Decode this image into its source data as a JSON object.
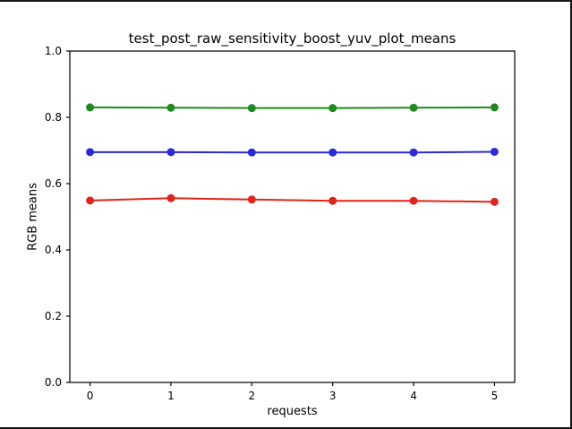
{
  "chart_data": {
    "type": "line",
    "title": "test_post_raw_sensitivity_boost_yuv_plot_means",
    "xlabel": "requests",
    "ylabel": "RGB means",
    "x": [
      0,
      1,
      2,
      3,
      4,
      5
    ],
    "series": [
      {
        "name": "green",
        "color": "#1e8b1e",
        "values": [
          0.83,
          0.829,
          0.828,
          0.828,
          0.829,
          0.83
        ]
      },
      {
        "name": "blue",
        "color": "#2b29d8",
        "values": [
          0.695,
          0.695,
          0.694,
          0.694,
          0.694,
          0.696
        ]
      },
      {
        "name": "red",
        "color": "#e0241b",
        "values": [
          0.549,
          0.556,
          0.552,
          0.548,
          0.548,
          0.545
        ]
      }
    ],
    "xlim": [
      -0.25,
      5.25
    ],
    "ylim": [
      0,
      1
    ],
    "xticks": [
      0,
      1,
      2,
      3,
      4,
      5
    ],
    "xtick_labels": [
      "0",
      "1",
      "2",
      "3",
      "4",
      "5"
    ],
    "yticks": [
      0.0,
      0.2,
      0.4,
      0.6,
      0.8,
      1.0
    ],
    "ytick_labels": [
      "0.0",
      "0.2",
      "0.4",
      "0.6",
      "0.8",
      "1.0"
    ],
    "grid": false,
    "legend": "none",
    "marker": "circle",
    "axis_color": "#000000"
  }
}
